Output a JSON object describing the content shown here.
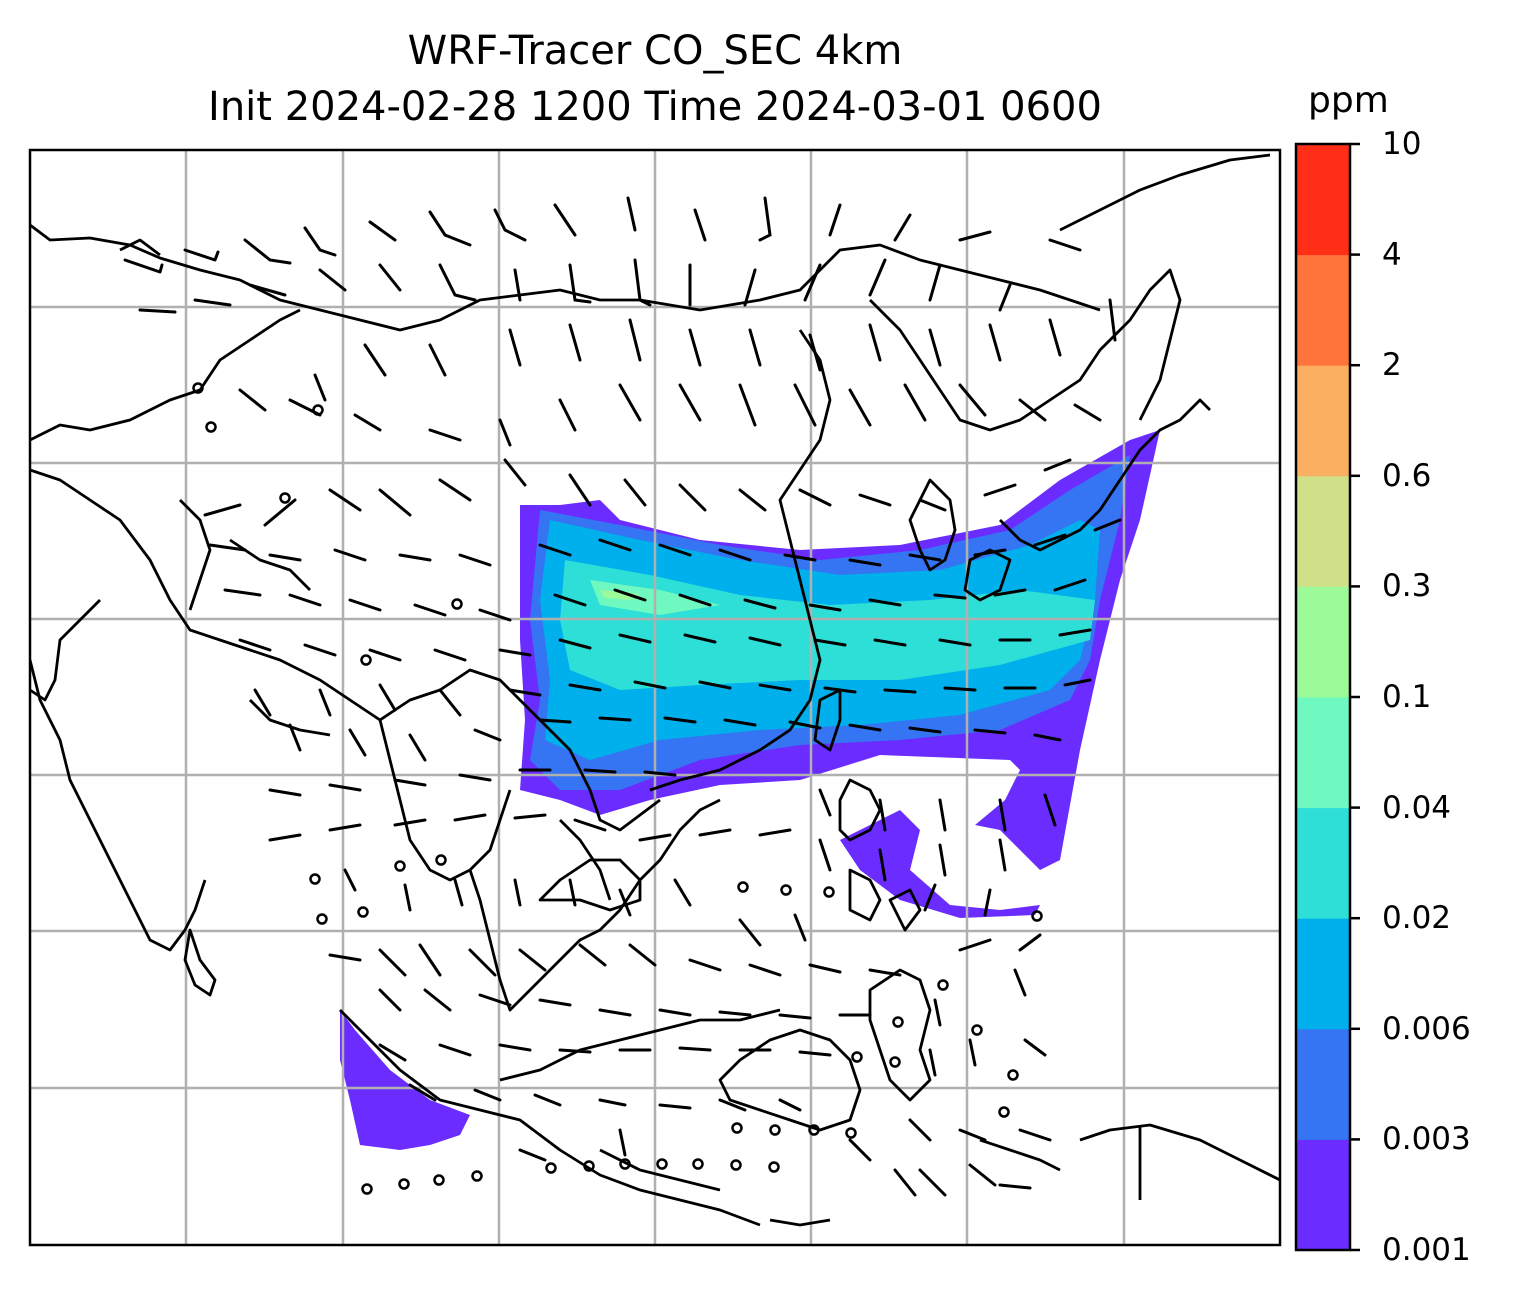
{
  "title": {
    "line1": "WRF-Tracer CO_SEC 4km",
    "line2": "Init 2024-02-28 1200 Time 2024-03-01 0600"
  },
  "colorbar": {
    "unit": "ppm",
    "levels": [
      "0.001",
      "0.003",
      "0.006",
      "0.02",
      "0.04",
      "0.1",
      "0.3",
      "0.6",
      "2",
      "4",
      "10"
    ],
    "colors": [
      "#6a2cff",
      "#3574f2",
      "#00b0ec",
      "#2ddfd7",
      "#6ff9c0",
      "#9cfb98",
      "#cfe088",
      "#fbb061",
      "#ff743b",
      "#ff2e16"
    ]
  },
  "map": {
    "gridline_color": "#b0b0b0",
    "coastline_color": "#000000",
    "barb_color": "#000000"
  }
}
